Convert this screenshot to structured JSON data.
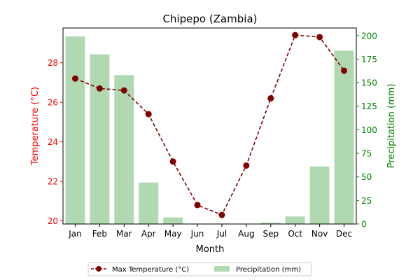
{
  "chart_data": {
    "type": "bar+line",
    "title": "Chipepo (Zambia)",
    "xlabel": "Month",
    "categories": [
      "Jan",
      "Feb",
      "Mar",
      "Apr",
      "May",
      "Jun",
      "Jul",
      "Aug",
      "Sep",
      "Oct",
      "Nov",
      "Dec"
    ],
    "y_left": {
      "label": "Temperature (°C)",
      "range": [
        19.84,
        29.76
      ],
      "ticks": [
        20,
        22,
        24,
        26,
        28
      ],
      "color": "#ff0000"
    },
    "y_right": {
      "label": "Precipitation (mm)",
      "range": [
        0,
        208
      ],
      "ticks": [
        0,
        25,
        50,
        75,
        100,
        125,
        150,
        175,
        200
      ],
      "color": "#008000"
    },
    "series": [
      {
        "name": "Max Temperature (°C)",
        "type": "line",
        "axis": "left",
        "color": "#800000",
        "values": [
          27.2,
          26.7,
          26.6,
          25.4,
          23.0,
          20.8,
          20.3,
          22.8,
          26.2,
          29.4,
          29.3,
          27.6
        ]
      },
      {
        "name": "Precipitation (mm)",
        "type": "bar",
        "axis": "right",
        "color": "#b0d9b1",
        "values": [
          199,
          180,
          158,
          44,
          7,
          0.5,
          0.5,
          0,
          1.5,
          8,
          61,
          184
        ]
      }
    ],
    "legend": "bottom-center",
    "grid": false
  }
}
